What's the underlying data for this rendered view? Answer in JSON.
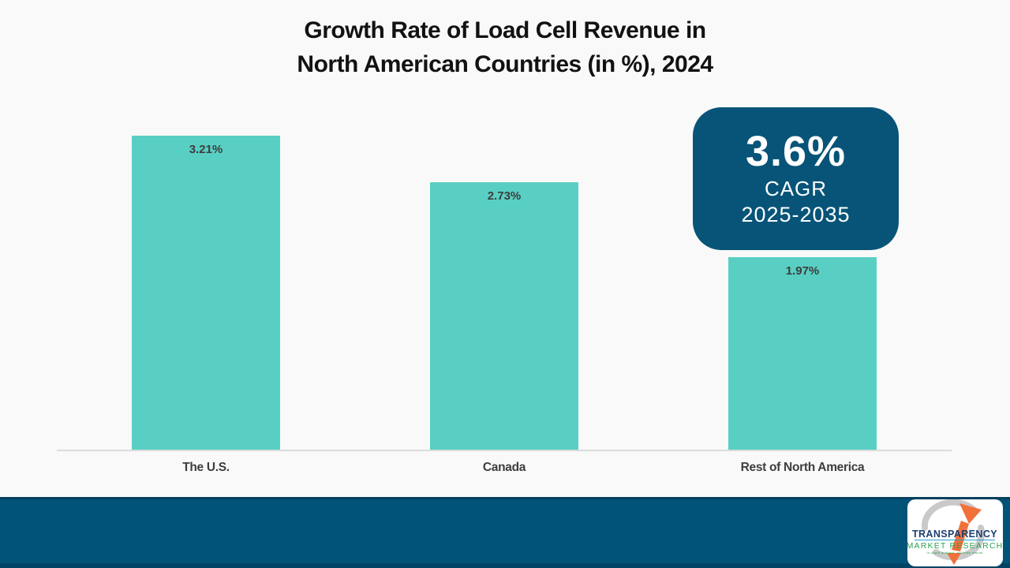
{
  "title": {
    "line1": "Growth Rate of Load Cell Revenue in",
    "line2": "North American Countries (in %), 2024"
  },
  "chart_data": {
    "type": "bar",
    "title": "Growth Rate of Load Cell Revenue in North American Countries (in %), 2024",
    "categories": [
      "The U.S.",
      "Canada",
      "Rest of North America"
    ],
    "values": [
      3.21,
      2.73,
      1.97
    ],
    "value_labels": [
      "3.21%",
      "2.73%",
      "1.97%"
    ],
    "xlabel": "",
    "ylabel": "",
    "ylim": [
      0,
      3.5
    ],
    "grid": false,
    "legend": false,
    "bar_color": "#59CFC3",
    "value_label_position": "inside-top",
    "axis_line_color": "#dcdcdc"
  },
  "badge": {
    "value": "3.6%",
    "label": "CAGR",
    "period": "2025-2035",
    "bg_color": "#075478",
    "text_color": "#FFFFFF"
  },
  "footer": {
    "bg_color": "#015377"
  },
  "logo": {
    "line1": "TRANSPARENCY",
    "line2": "MARKET RESEARCH",
    "tagline": "In-depth analysis, accurate results",
    "navy": "#1C3E6E",
    "green": "#2EA152",
    "orange": "#F2703A",
    "gray": "#C9C9C9"
  }
}
